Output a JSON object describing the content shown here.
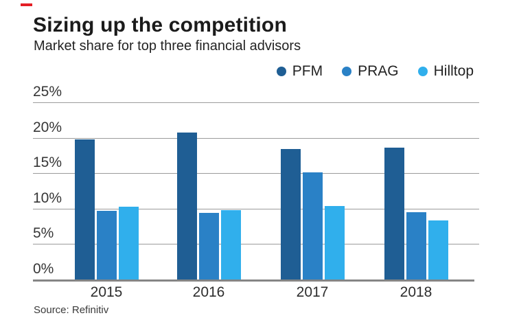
{
  "accent": {
    "color": "#e41e25"
  },
  "header": {
    "title": "Sizing up the competition",
    "subtitle": "Market share for top three financial advisors"
  },
  "source_label": "Source: Refinitiv",
  "colors": {
    "pfm": "#1f5e94",
    "prag": "#2a81c6",
    "hilltop": "#30afec",
    "gridline": "#9b9b9b",
    "axis": "#858585"
  },
  "chart_data": {
    "type": "bar",
    "title": "Sizing up the competition",
    "subtitle": "Market share for top three financial advisors",
    "categories": [
      "2015",
      "2016",
      "2017",
      "2018"
    ],
    "series": [
      {
        "name": "PFM",
        "color": "#1f5e94",
        "values": [
          19.8,
          20.7,
          18.4,
          18.6
        ]
      },
      {
        "name": "PRAG",
        "color": "#2a81c6",
        "values": [
          9.7,
          9.4,
          15.1,
          9.5
        ]
      },
      {
        "name": "Hilltop",
        "color": "#30afec",
        "values": [
          10.3,
          9.8,
          10.4,
          8.3
        ]
      }
    ],
    "xlabel": "",
    "ylabel": "",
    "y_ticks": [
      0,
      5,
      10,
      15,
      20,
      25
    ],
    "y_tick_labels": [
      "0%",
      "5%",
      "10%",
      "15%",
      "20%",
      "25%"
    ],
    "ylim": [
      0,
      25
    ],
    "unit": "%",
    "grid": true,
    "legend_position": "top-right",
    "source": "Source: Refinitiv"
  }
}
